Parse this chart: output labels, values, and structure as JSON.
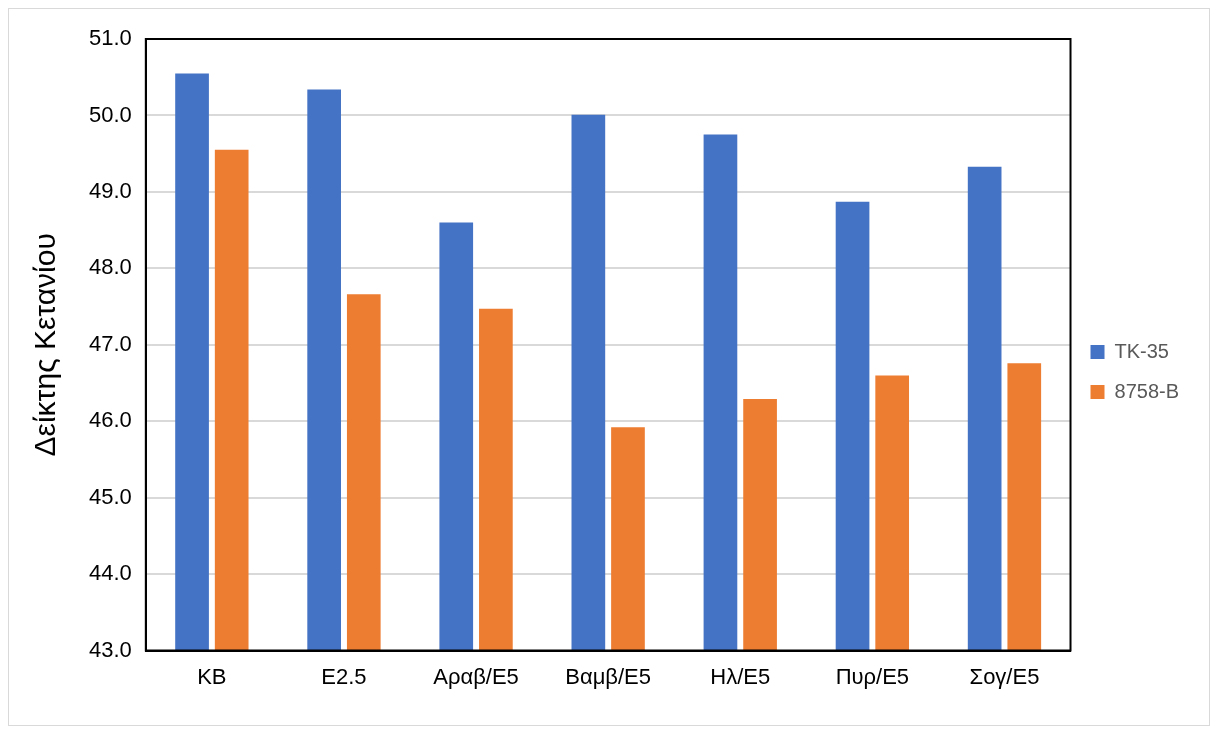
{
  "chart_data": {
    "type": "bar",
    "ylabel": "Δείκτης Κετανίου",
    "categories": [
      "KB",
      "E2.5",
      "Αραβ/E5",
      "Βαμβ/E5",
      "Ηλ/E5",
      "Πυρ/E5",
      "Σογ/E5"
    ],
    "series": [
      {
        "name": "TK-35",
        "color": "#4472c4",
        "values": [
          50.55,
          50.34,
          48.6,
          50.01,
          49.75,
          48.87,
          49.33
        ]
      },
      {
        "name": "8758-B",
        "color": "#ed7d31",
        "values": [
          49.55,
          47.66,
          47.47,
          45.92,
          46.29,
          46.6,
          46.76
        ]
      }
    ],
    "ylim": [
      43,
      51
    ],
    "yticks": [
      {
        "value": 43,
        "label": "43.0"
      },
      {
        "value": 44,
        "label": "44.0"
      },
      {
        "value": 45,
        "label": "45.0"
      },
      {
        "value": 46,
        "label": "46.0"
      },
      {
        "value": 47,
        "label": "47.0"
      },
      {
        "value": 48,
        "label": "48.0"
      },
      {
        "value": 49,
        "label": "49.0"
      },
      {
        "value": 50,
        "label": "50.0"
      },
      {
        "value": 51,
        "label": "51.0"
      }
    ],
    "grid": "y",
    "legend": "right"
  }
}
